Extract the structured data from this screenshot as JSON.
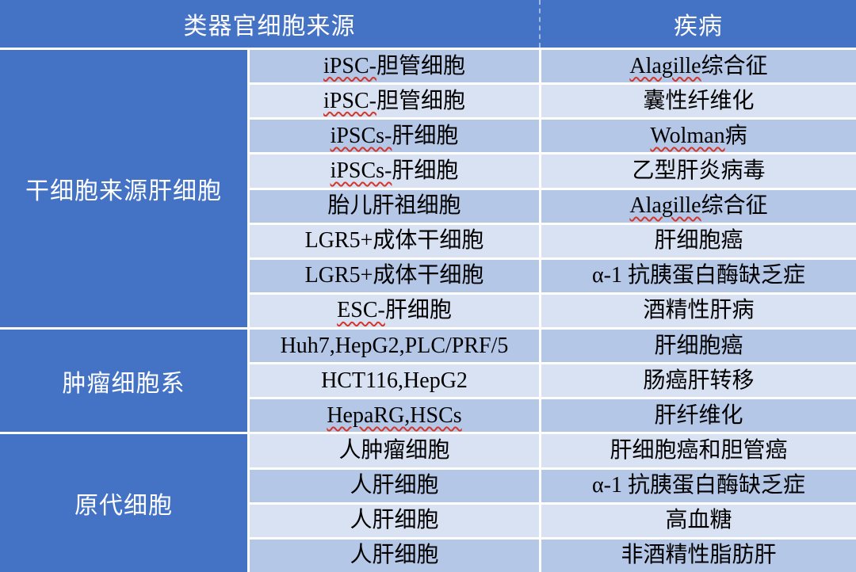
{
  "colors": {
    "header_blue": "#4472C4",
    "band_dark": "#B4C7E7",
    "band_light": "#D9E2F3",
    "spellcheck_red": "#D5362A",
    "header_text": "#FFFFFF",
    "body_text": "#000000"
  },
  "table": {
    "header": {
      "source_col": "类器官细胞来源",
      "disease_col": "疾病"
    },
    "groups": [
      {
        "label": "干细胞来源肝细胞",
        "row_count": 8
      },
      {
        "label": "肿瘤细胞系",
        "row_count": 3
      },
      {
        "label": "原代细胞",
        "row_count": 4
      }
    ],
    "rows": [
      {
        "group": "干细胞来源肝细胞",
        "source_mark": "iPSC-",
        "source_rest": "胆管细胞",
        "disease_mark": "Alagille",
        "disease_rest": " 综合征"
      },
      {
        "group": "干细胞来源肝细胞",
        "source_mark": "iPSC-",
        "source_rest": "胆管细胞",
        "disease_mark": "",
        "disease_rest": "囊性纤维化"
      },
      {
        "group": "干细胞来源肝细胞",
        "source_mark": "iPSCs-",
        "source_rest": "肝细胞",
        "disease_mark": "Wolman",
        "disease_rest": " 病"
      },
      {
        "group": "干细胞来源肝细胞",
        "source_mark": "iPSCs-",
        "source_rest": "肝细胞",
        "disease_mark": "",
        "disease_rest": "乙型肝炎病毒"
      },
      {
        "group": "干细胞来源肝细胞",
        "source_mark": "",
        "source_rest": "胎儿肝祖细胞",
        "disease_mark": "Alagille",
        "disease_rest": " 综合征"
      },
      {
        "group": "干细胞来源肝细胞",
        "source_mark": "",
        "source_rest": "LGR5+成体干细胞",
        "disease_mark": "",
        "disease_rest": "肝细胞癌"
      },
      {
        "group": "干细胞来源肝细胞",
        "source_mark": "",
        "source_rest": "LGR5+成体干细胞",
        "disease_mark": "",
        "disease_rest": "α-1 抗胰蛋白酶缺乏症"
      },
      {
        "group": "干细胞来源肝细胞",
        "source_mark": "ESC-",
        "source_rest": "肝细胞",
        "disease_mark": "",
        "disease_rest": "酒精性肝病"
      },
      {
        "group": "肿瘤细胞系",
        "source_mark": "",
        "source_rest": "Huh7,HepG2,PLC/PRF/5",
        "disease_mark": "",
        "disease_rest": "肝细胞癌"
      },
      {
        "group": "肿瘤细胞系",
        "source_mark": "",
        "source_rest": "HCT116,HepG2",
        "disease_mark": "",
        "disease_rest": "肠癌肝转移"
      },
      {
        "group": "肿瘤细胞系",
        "source_mark": "HepaRG,HSCs",
        "source_rest": "",
        "disease_mark": "",
        "disease_rest": "肝纤维化"
      },
      {
        "group": "原代细胞",
        "source_mark": "",
        "source_rest": "人肿瘤细胞",
        "disease_mark": "",
        "disease_rest": "肝细胞癌和胆管癌"
      },
      {
        "group": "原代细胞",
        "source_mark": "",
        "source_rest": "人肝细胞",
        "disease_mark": "",
        "disease_rest": "α-1 抗胰蛋白酶缺乏症"
      },
      {
        "group": "原代细胞",
        "source_mark": "",
        "source_rest": "人肝细胞",
        "disease_mark": "",
        "disease_rest": "高血糖"
      },
      {
        "group": "原代细胞",
        "source_mark": "",
        "source_rest": "人肝细胞",
        "disease_mark": "",
        "disease_rest": "非酒精性脂肪肝"
      }
    ]
  }
}
